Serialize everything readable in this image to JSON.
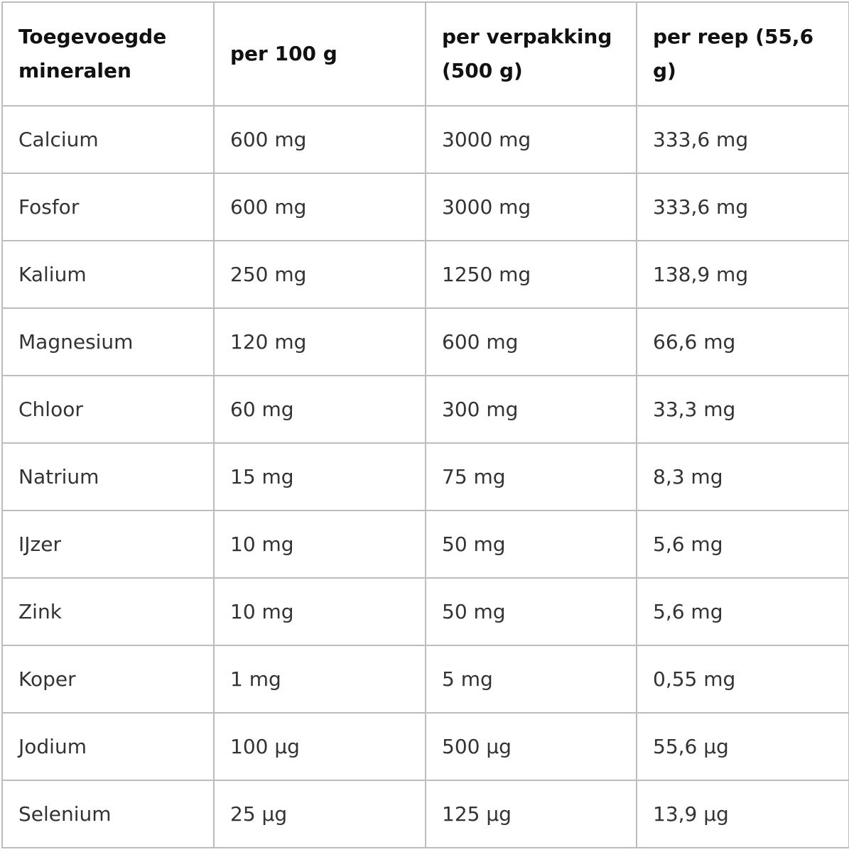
{
  "table": {
    "header": [
      "Toegevoegde mineralen",
      "per 100 g",
      "per verpakking (500 g)",
      "per reep (55,6 g)"
    ],
    "rows": [
      [
        "Calcium",
        "600 mg",
        "3000 mg",
        "333,6 mg"
      ],
      [
        "Fosfor",
        "600 mg",
        "3000 mg",
        "333,6 mg"
      ],
      [
        "Kalium",
        "250 mg",
        "1250 mg",
        "138,9 mg"
      ],
      [
        "Magnesium",
        "120 mg",
        "600 mg",
        "66,6 mg"
      ],
      [
        "Chloor",
        "60 mg",
        "300 mg",
        "33,3 mg"
      ],
      [
        "Natrium",
        "15 mg",
        "75 mg",
        "8,3 mg"
      ],
      [
        "IJzer",
        "10 mg",
        "50 mg",
        "5,6 mg"
      ],
      [
        "Zink",
        "10 mg",
        "50 mg",
        "5,6 mg"
      ],
      [
        "Koper",
        "1 mg",
        "5 mg",
        "0,55 mg"
      ],
      [
        "Jodium",
        "100 µg",
        "500 µg",
        "55,6 µg"
      ],
      [
        "Selenium",
        "25 µg",
        "125 µg",
        "13,9 µg"
      ]
    ]
  }
}
